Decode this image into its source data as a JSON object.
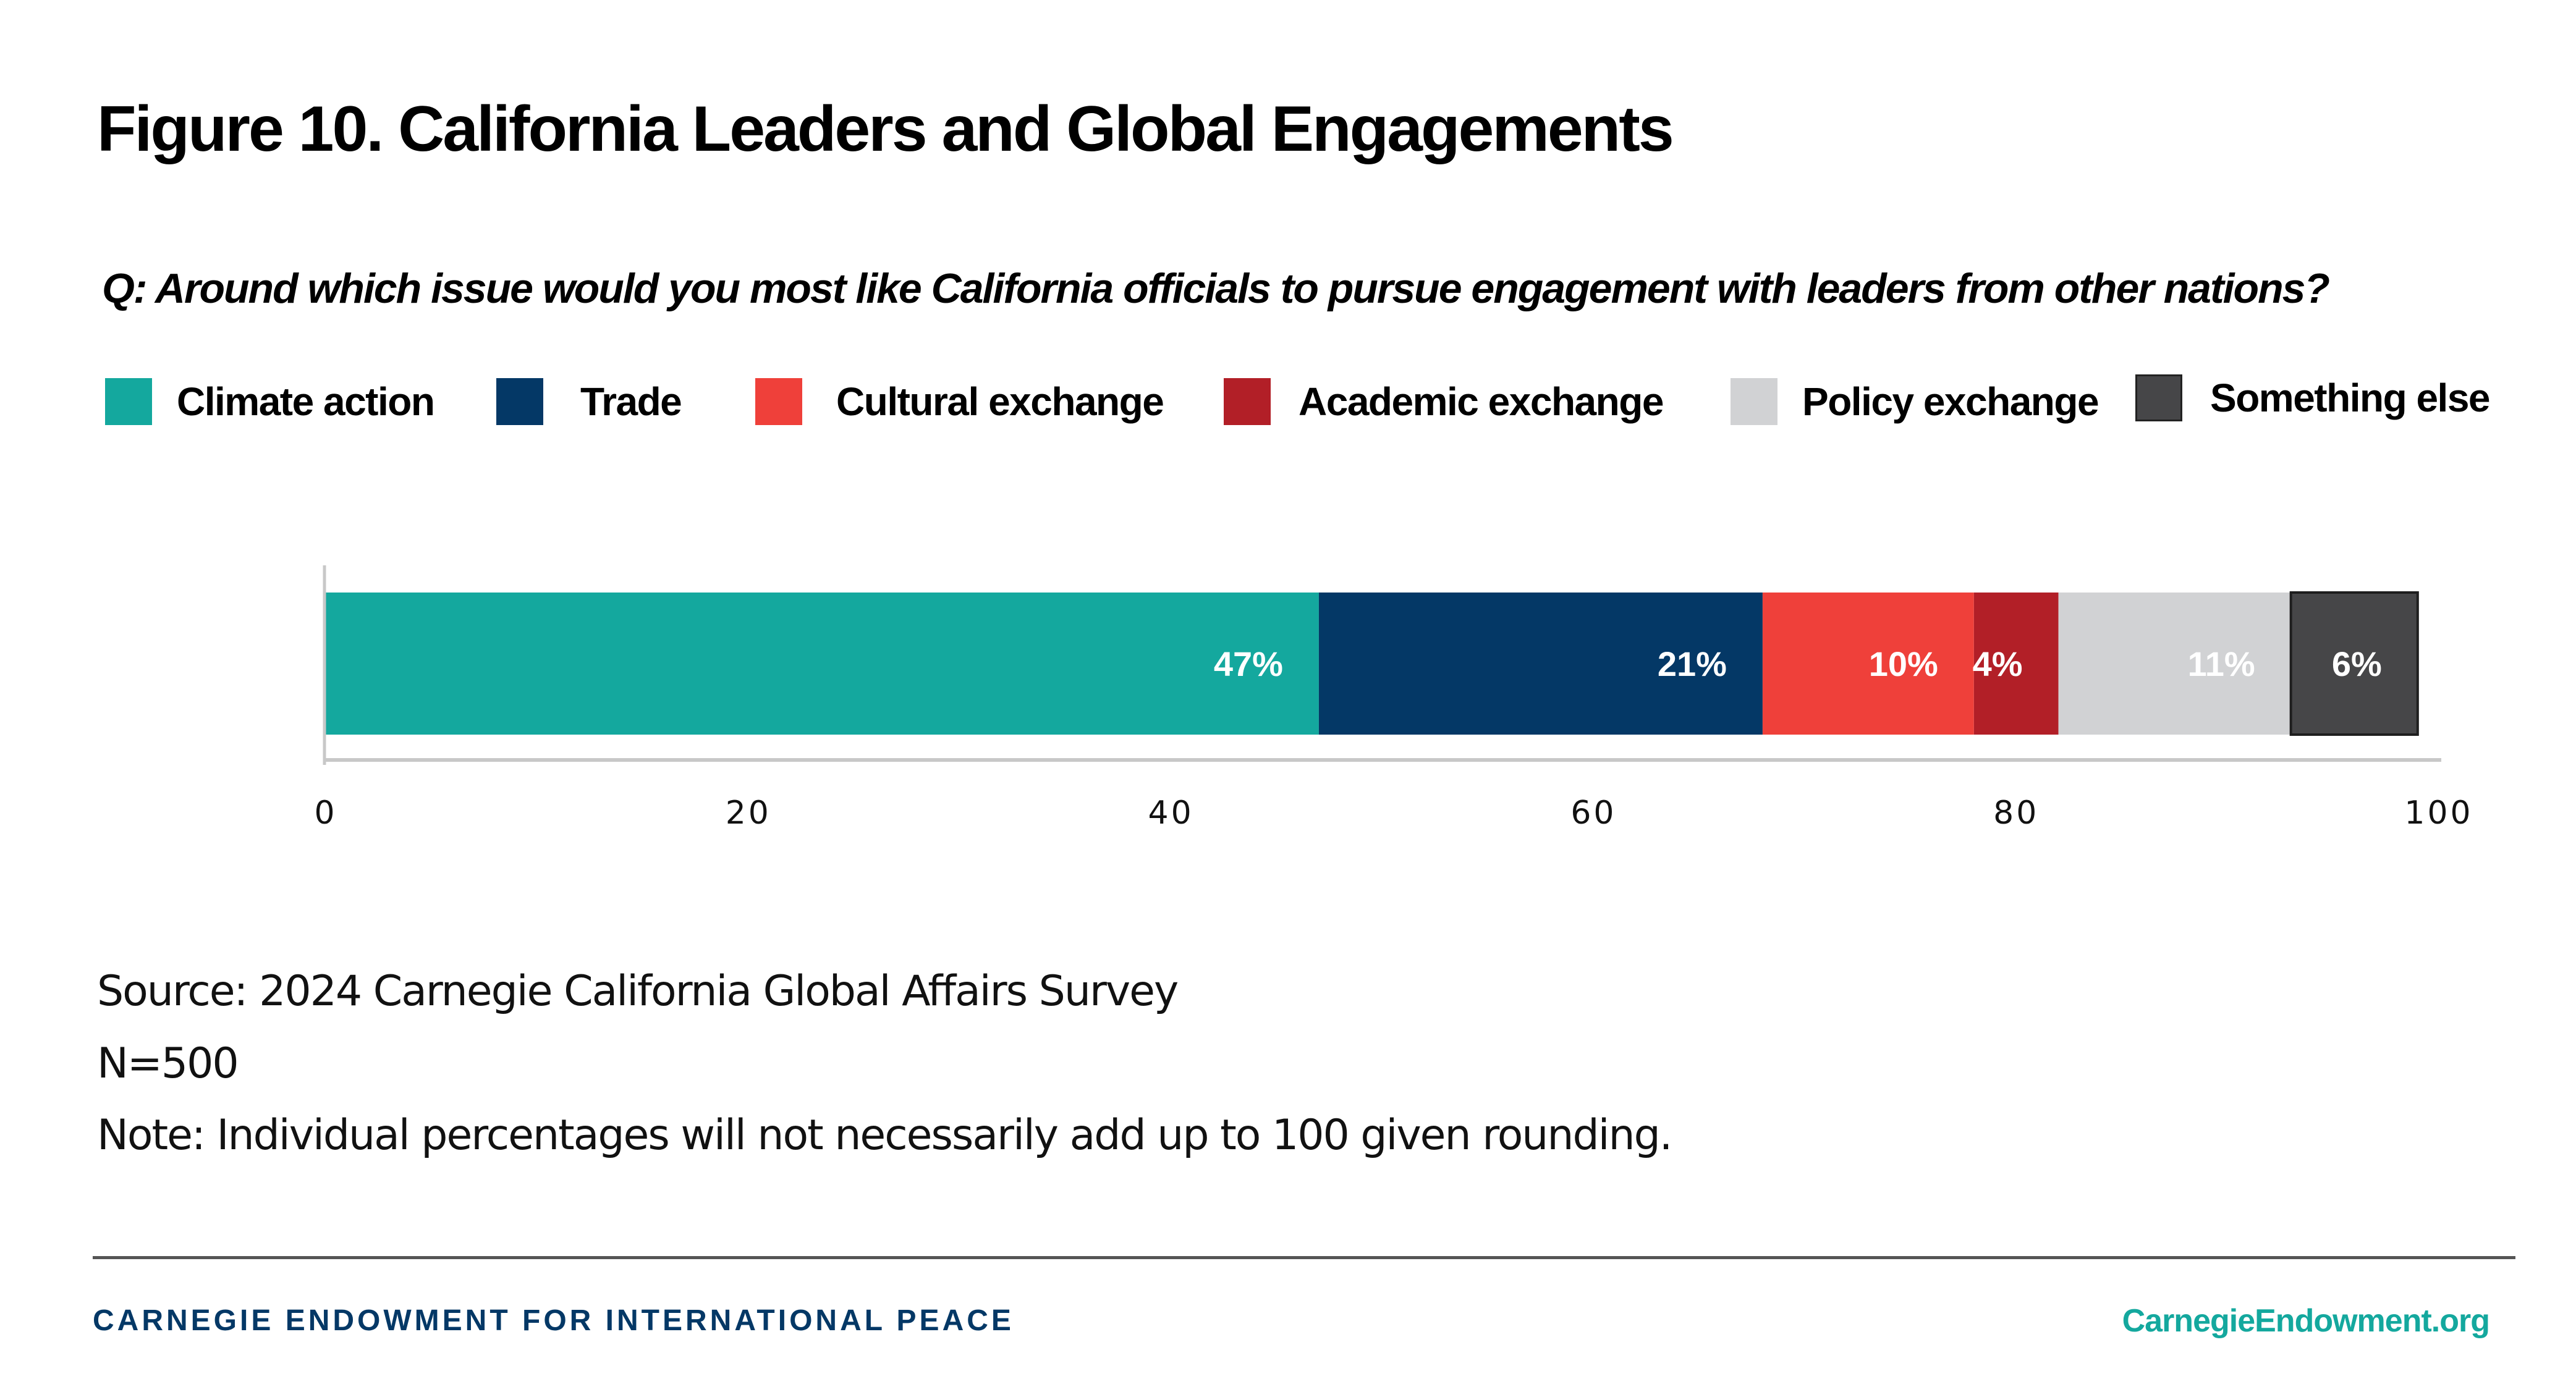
{
  "header": {
    "title": "Figure 10. California Leaders and Global Engagements",
    "question": "Q: Around which issue would you most like California officials to pursue engagement with leaders from other nations?"
  },
  "legend": [
    {
      "label": "Climate action",
      "color": "#14a89e"
    },
    {
      "label": "Trade",
      "color": "#043866"
    },
    {
      "label": "Cultural exchange",
      "color": "#ef403a"
    },
    {
      "label": "Academic exchange",
      "color": "#b21f27"
    },
    {
      "label": "Policy exchange",
      "color": "#d1d2d4"
    },
    {
      "label": "Something else",
      "color": "#464648"
    }
  ],
  "chart_data": {
    "type": "bar",
    "orientation": "horizontal-stacked",
    "title": "Figure 10. California Leaders and Global Engagements",
    "subtitle": "Q: Around which issue would you most like California officials to pursue engagement with leaders from other nations?",
    "categories": [
      ""
    ],
    "series": [
      {
        "name": "Climate action",
        "values": [
          47
        ],
        "label": "47%",
        "color": "#14a89e"
      },
      {
        "name": "Trade",
        "values": [
          21
        ],
        "label": "21%",
        "color": "#043866"
      },
      {
        "name": "Cultural exchange",
        "values": [
          10
        ],
        "label": "10%",
        "color": "#ef403a"
      },
      {
        "name": "Academic exchange",
        "values": [
          4
        ],
        "label": "4%",
        "color": "#b21f27"
      },
      {
        "name": "Policy exchange",
        "values": [
          11
        ],
        "label": "11%",
        "color": "#d1d2d4"
      },
      {
        "name": "Something else",
        "values": [
          6
        ],
        "label": "6%",
        "color": "#464648"
      }
    ],
    "xlabel": "",
    "ylabel": "",
    "xlim": [
      0,
      100
    ],
    "xticks": [
      "0",
      "20",
      "40",
      "60",
      "80",
      "100"
    ],
    "grid": false,
    "legend_position": "top"
  },
  "notes": {
    "source": "Source: 2024 Carnegie California Global Affairs Survey",
    "n": "N=500",
    "note": "Note: Individual percentages will not necessarily add up to 100 given rounding."
  },
  "footer": {
    "org": "CARNEGIE ENDOWMENT FOR INTERNATIONAL PEACE",
    "url": "CarnegieEndowment.org"
  }
}
